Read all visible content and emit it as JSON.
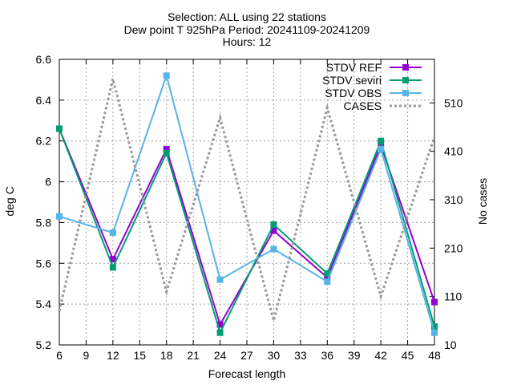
{
  "chart_data": {
    "type": "line",
    "title": "Selection: ALL using    22 stations\nDew point T 925hPa   Period: 20241109-20241209\nHours: 12",
    "title_lines": [
      "Selection: ALL using    22 stations",
      "Dew point T 925hPa   Period: 20241109-20241209",
      "Hours: 12"
    ],
    "xlabel": "Forecast length",
    "ylabel": "deg C",
    "y2label": "No cases",
    "xlim": [
      6,
      48
    ],
    "ylim": [
      5.2,
      6.6
    ],
    "y2lim": [
      10,
      600
    ],
    "x_ticks": [
      "6",
      "9",
      "12",
      "15",
      "18",
      "21",
      "24",
      "27",
      "30",
      "33",
      "36",
      "39",
      "42",
      "45",
      "48"
    ],
    "y_ticks": [
      "5.2",
      "5.4",
      "5.6",
      "5.8",
      "6",
      "6.2",
      "6.4",
      "6.6"
    ],
    "y2_ticks": [
      "10",
      "110",
      "210",
      "310",
      "410",
      "510"
    ],
    "grid": true,
    "legend_placement": "top-right",
    "x": [
      6,
      12,
      18,
      24,
      30,
      36,
      42,
      48
    ],
    "series": [
      {
        "name": "STDV REF",
        "color": "#9400d3",
        "marker": "square",
        "axis": "y",
        "values": [
          6.26,
          5.62,
          6.16,
          5.3,
          5.76,
          5.53,
          6.18,
          5.41
        ]
      },
      {
        "name": "STDV seviri",
        "color": "#009e73",
        "marker": "square",
        "axis": "y",
        "values": [
          6.26,
          5.58,
          6.14,
          5.26,
          5.79,
          5.55,
          6.2,
          5.29
        ]
      },
      {
        "name": "STDV OBS",
        "color": "#56b4e9",
        "marker": "square",
        "axis": "y",
        "values": [
          5.83,
          5.75,
          6.52,
          5.52,
          5.67,
          5.51,
          6.16,
          5.26
        ]
      },
      {
        "name": "CASES",
        "color": "#999999",
        "style": "dotted",
        "axis": "y2",
        "values": [
          80,
          560,
          120,
          480,
          60,
          500,
          110,
          440
        ]
      }
    ]
  }
}
